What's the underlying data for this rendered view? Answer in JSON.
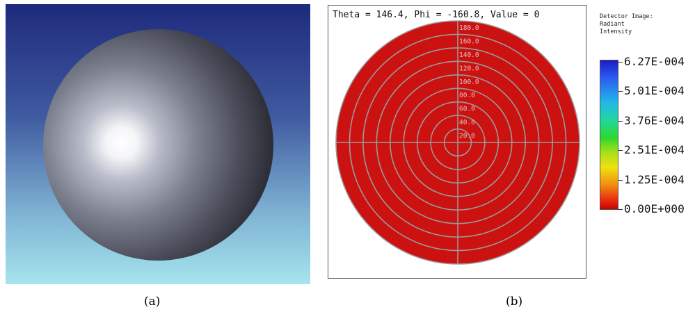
{
  "panel_a": {
    "caption": "(a)",
    "background_top": "#1e2a7c",
    "background_bottom": "#a6e4ee",
    "sphere_color": "#7c7f8d"
  },
  "panel_b": {
    "caption": "(b)",
    "readout": "Theta = 146.4, Phi = -160.8, Value = 0",
    "disk_color": "#cc1111",
    "grid_color": "#9a9a9a",
    "ring_labels": [
      "20.0",
      "40.0",
      "60.0",
      "80.0",
      "100.0",
      "120.0",
      "140.0",
      "160.0",
      "180.0"
    ],
    "legend": {
      "title_lines": [
        "Detector Image:",
        "Radiant",
        "Intensity"
      ],
      "ticks": [
        "6.27E-004",
        "5.01E-004",
        "3.76E-004",
        "2.51E-004",
        "1.25E-004",
        "0.00E+000"
      ]
    }
  }
}
